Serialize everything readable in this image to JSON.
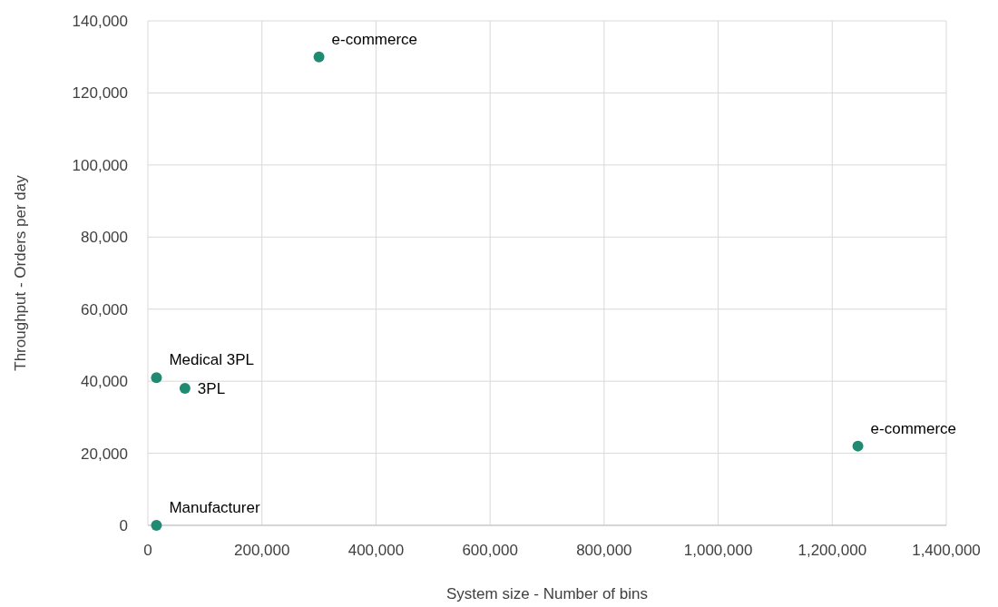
{
  "chart_data": {
    "type": "scatter",
    "xlabel": "System size - Number of bins",
    "ylabel": "Throughput - Orders per day",
    "x": [
      300000,
      15000,
      65000,
      1245000,
      15000
    ],
    "series": [
      {
        "color": "#208a73",
        "values": [
          130000,
          41000,
          38000,
          22000,
          0
        ]
      }
    ],
    "xlim": [
      0,
      1400000
    ],
    "xticks": [
      {
        "value": 0,
        "label": "0"
      },
      {
        "value": 200000,
        "label": "200,000"
      },
      {
        "value": 400000,
        "label": "400,000"
      },
      {
        "value": 600000,
        "label": "600,000"
      },
      {
        "value": 800000,
        "label": "800,000"
      },
      {
        "value": 1000000,
        "label": "1,000,000"
      },
      {
        "value": 1200000,
        "label": "1,200,000"
      },
      {
        "value": 1400000,
        "label": "1,400,000"
      }
    ],
    "ylim": [
      0,
      140000
    ],
    "yticks": [
      {
        "value": 0,
        "label": "0"
      },
      {
        "value": 20000,
        "label": "20,000"
      },
      {
        "value": 40000,
        "label": "40,000"
      },
      {
        "value": 60000,
        "label": "60,000"
      },
      {
        "value": 80000,
        "label": "80,000"
      },
      {
        "value": 100000,
        "label": "100,000"
      },
      {
        "value": 120000,
        "label": "120,000"
      },
      {
        "value": 140000,
        "label": "140,000"
      }
    ],
    "grid": true,
    "marker": "circle",
    "annotations": [
      {
        "text": "e-commerce",
        "x": 300000,
        "y": 130000
      },
      {
        "text": "Medical 3PL",
        "x": 15000,
        "y": 41000
      },
      {
        "text": "3PL",
        "x": 65000,
        "y": 38000
      },
      {
        "text": "e-commerce",
        "x": 1245000,
        "y": 22000
      },
      {
        "text": "Manufacturer",
        "x": 15000,
        "y": 0
      }
    ]
  }
}
